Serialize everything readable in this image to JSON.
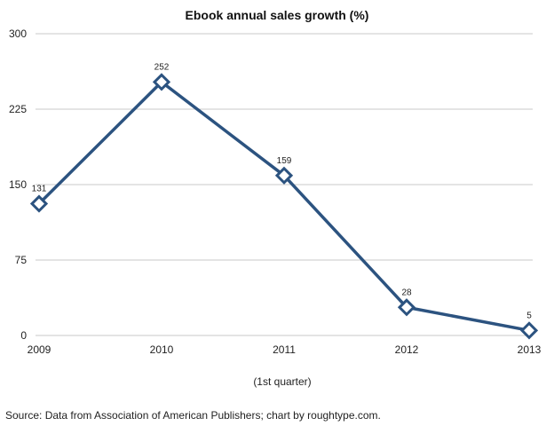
{
  "chart_data": {
    "type": "line",
    "title": "Ebook annual sales growth (%)",
    "xlabel": "",
    "ylabel": "",
    "categories": [
      "2009",
      "2010",
      "2011",
      "2012",
      "2013"
    ],
    "category_note": "(1st quarter)",
    "series": [
      {
        "values": [
          131,
          252,
          159,
          28,
          5
        ],
        "labels": [
          "131",
          "252",
          "159",
          "28",
          "5"
        ],
        "color": "#2c5380"
      }
    ],
    "yticks": [
      "0",
      "75",
      "150",
      "225",
      "300"
    ],
    "ytick_values": [
      0,
      75,
      150,
      225,
      300
    ],
    "ylim": [
      0,
      300
    ],
    "grid": true,
    "legend": "none",
    "gridline_color": "#c8c8c8",
    "marker": "diamond-outline"
  },
  "source": "Source: Data from Association of American Publishers; chart by roughtype.com."
}
